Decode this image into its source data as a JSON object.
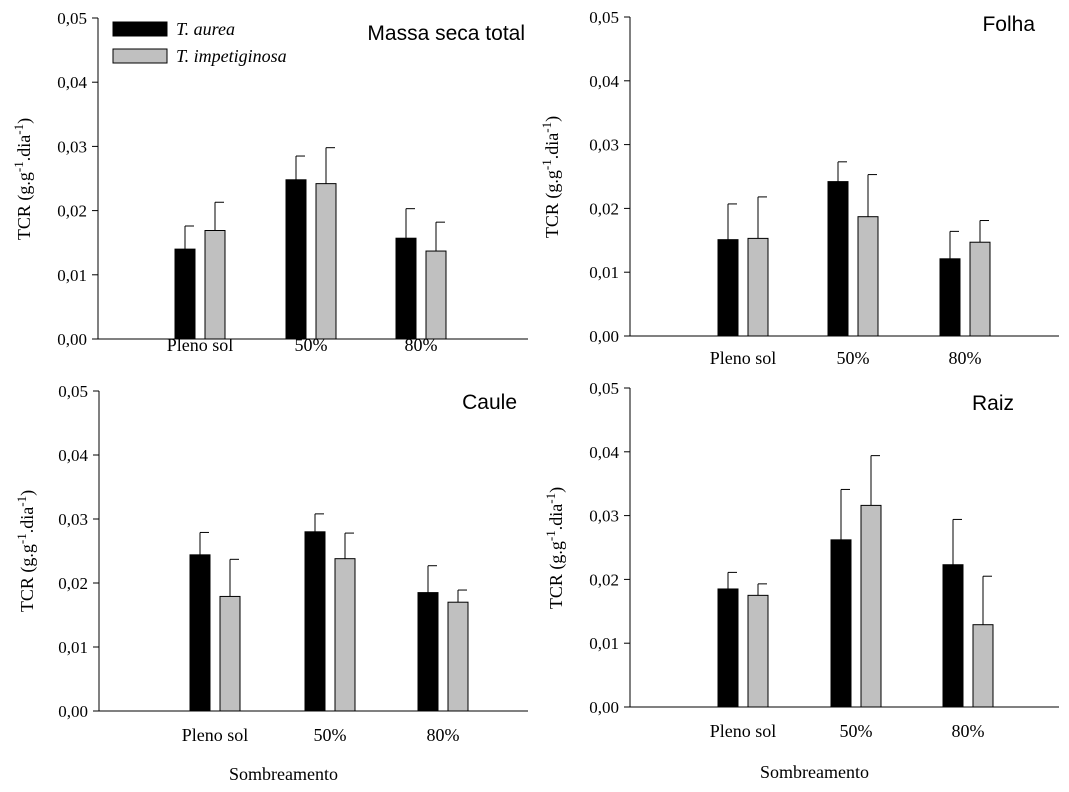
{
  "legend": {
    "series": [
      {
        "name": "T. aurea",
        "color": "#000000"
      },
      {
        "name": "T. impetiginosa",
        "color": "#c0c0c0"
      }
    ]
  },
  "xlabel_shared": "Sombreamento",
  "chart_data": [
    {
      "type": "bar",
      "title": "Massa seca total",
      "ylabel": "TCR (g.g-1.dia-1)",
      "categories": [
        "Pleno sol",
        "50%",
        "80%"
      ],
      "ylim": [
        0,
        0.05
      ],
      "yticks": [
        "0,00",
        "0,01",
        "0,02",
        "0,03",
        "0,04",
        "0,05"
      ],
      "series": [
        {
          "name": "T. aurea",
          "values": [
            0.014,
            0.0248,
            0.0157
          ],
          "errors": [
            0.0036,
            0.0037,
            0.0046
          ]
        },
        {
          "name": "T. impetiginosa",
          "values": [
            0.0169,
            0.0242,
            0.0137
          ],
          "errors": [
            0.0044,
            0.0056,
            0.0045
          ]
        }
      ]
    },
    {
      "type": "bar",
      "title": "Folha",
      "ylabel": "TCR (g.g-1.dia-1)",
      "categories": [
        "Pleno sol",
        "50%",
        "80%"
      ],
      "ylim": [
        0,
        0.05
      ],
      "yticks": [
        "0,00",
        "0,01",
        "0,02",
        "0,03",
        "0,04",
        "0,05"
      ],
      "series": [
        {
          "name": "T. aurea",
          "values": [
            0.0151,
            0.0242,
            0.0121
          ],
          "errors": [
            0.0056,
            0.0031,
            0.0043
          ]
        },
        {
          "name": "T. impetiginosa",
          "values": [
            0.0153,
            0.0187,
            0.0147
          ],
          "errors": [
            0.0065,
            0.0066,
            0.0034
          ]
        }
      ]
    },
    {
      "type": "bar",
      "title": "Caule",
      "ylabel": "TCR (g.g-1.dia-1)",
      "categories": [
        "Pleno sol",
        "50%",
        "80%"
      ],
      "ylim": [
        0,
        0.05
      ],
      "yticks": [
        "0,00",
        "0,01",
        "0,02",
        "0,03",
        "0,04",
        "0,05"
      ],
      "series": [
        {
          "name": "T. aurea",
          "values": [
            0.0244,
            0.028,
            0.0185
          ],
          "errors": [
            0.0035,
            0.0028,
            0.0042
          ]
        },
        {
          "name": "T. impetiginosa",
          "values": [
            0.0179,
            0.0238,
            0.017
          ],
          "errors": [
            0.0058,
            0.004,
            0.0019
          ]
        }
      ]
    },
    {
      "type": "bar",
      "title": "Raiz",
      "ylabel": "TCR (g.g-1.dia-1)",
      "categories": [
        "Pleno sol",
        "50%",
        "80%"
      ],
      "ylim": [
        0,
        0.05
      ],
      "yticks": [
        "0,00",
        "0,01",
        "0,02",
        "0,03",
        "0,04",
        "0,05"
      ],
      "series": [
        {
          "name": "T. aurea",
          "values": [
            0.0185,
            0.0262,
            0.0223
          ],
          "errors": [
            0.0026,
            0.0079,
            0.0071
          ]
        },
        {
          "name": "T. impetiginosa",
          "values": [
            0.0175,
            0.0316,
            0.0129
          ],
          "errors": [
            0.0018,
            0.0078,
            0.0076
          ]
        }
      ]
    }
  ]
}
